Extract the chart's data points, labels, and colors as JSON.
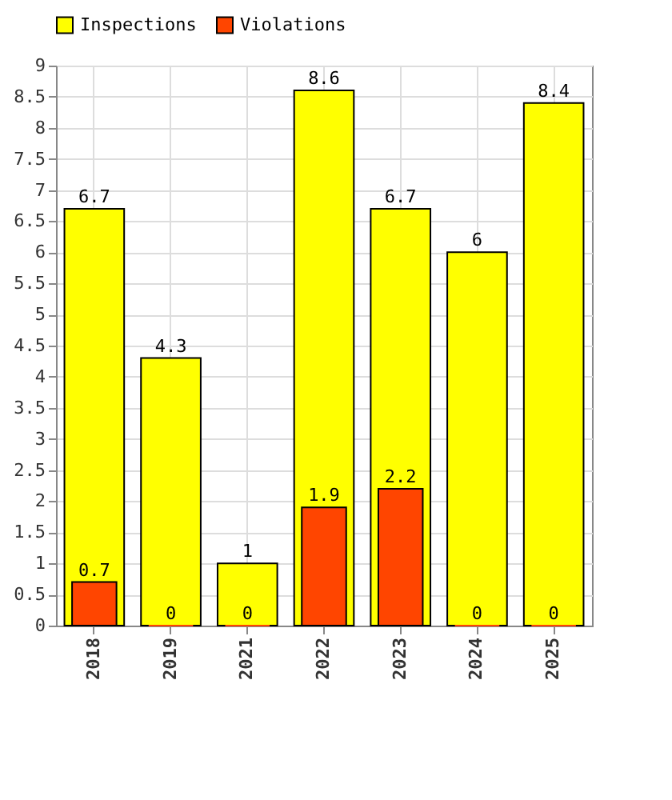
{
  "chart_data": {
    "type": "bar",
    "categories": [
      "2018",
      "2019",
      "2021",
      "2022",
      "2023",
      "2024",
      "2025"
    ],
    "series": [
      {
        "name": "Inspections",
        "color": "#ffff00",
        "values": [
          6.7,
          4.3,
          1,
          8.6,
          6.7,
          6,
          8.4
        ]
      },
      {
        "name": "Violations",
        "color": "#ff4500",
        "values": [
          0.7,
          0,
          0,
          1.9,
          2.2,
          0,
          0
        ]
      }
    ],
    "ylim": [
      0,
      9
    ],
    "yticks": [
      0,
      0.5,
      1,
      1.5,
      2,
      2.5,
      3,
      3.5,
      4,
      4.5,
      5,
      5.5,
      6,
      6.5,
      7,
      7.5,
      8,
      8.5,
      9
    ],
    "grid": true,
    "legend": "top",
    "data_labels": true
  }
}
